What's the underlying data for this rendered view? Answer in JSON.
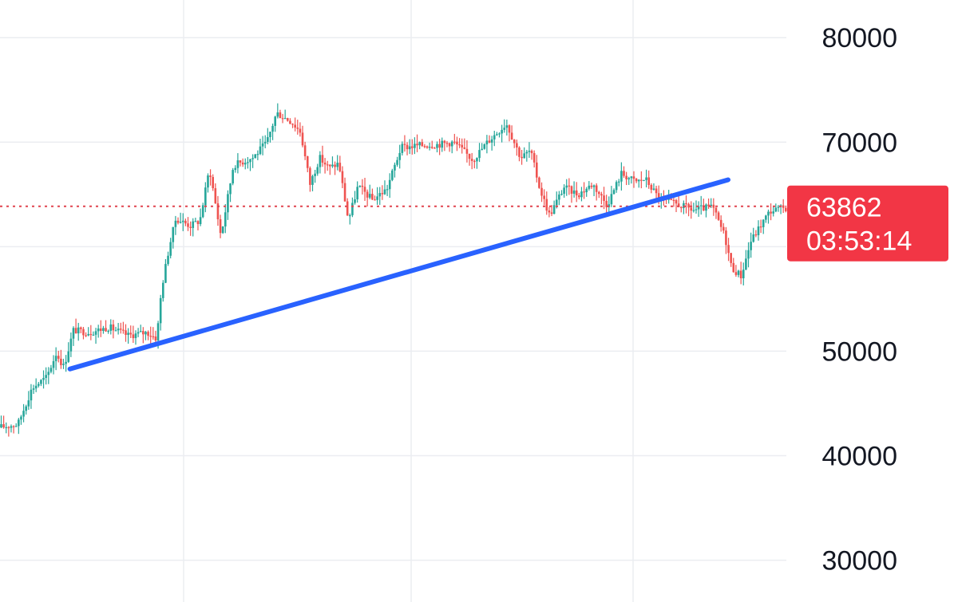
{
  "chart_data": {
    "type": "candlestick",
    "yticks": [
      80000,
      70000,
      50000,
      40000,
      30000
    ],
    "ylim": [
      26000,
      83600
    ],
    "grid": true,
    "price_label": {
      "value": 63862,
      "countdown": "03:53:14"
    },
    "trendline": {
      "start": [
        0.073,
        48300
      ],
      "end": [
        0.76,
        66400
      ]
    },
    "price_path": [
      [
        0.0,
        42700
      ],
      [
        0.02,
        43000
      ],
      [
        0.035,
        46500
      ],
      [
        0.05,
        47500
      ],
      [
        0.06,
        49800
      ],
      [
        0.068,
        48500
      ],
      [
        0.078,
        52000
      ],
      [
        0.095,
        51800
      ],
      [
        0.115,
        52300
      ],
      [
        0.135,
        51500
      ],
      [
        0.155,
        51800
      ],
      [
        0.165,
        51200
      ],
      [
        0.17,
        56000
      ],
      [
        0.178,
        60000
      ],
      [
        0.185,
        62700
      ],
      [
        0.2,
        62000
      ],
      [
        0.21,
        62500
      ],
      [
        0.22,
        67500
      ],
      [
        0.232,
        61000
      ],
      [
        0.245,
        67800
      ],
      [
        0.265,
        68500
      ],
      [
        0.28,
        70000
      ],
      [
        0.29,
        72800
      ],
      [
        0.305,
        72000
      ],
      [
        0.315,
        71000
      ],
      [
        0.325,
        66000
      ],
      [
        0.335,
        68500
      ],
      [
        0.345,
        67500
      ],
      [
        0.355,
        68000
      ],
      [
        0.365,
        62500
      ],
      [
        0.375,
        65800
      ],
      [
        0.39,
        64500
      ],
      [
        0.405,
        65500
      ],
      [
        0.42,
        69500
      ],
      [
        0.44,
        69700
      ],
      [
        0.46,
        69800
      ],
      [
        0.475,
        70000
      ],
      [
        0.495,
        68300
      ],
      [
        0.51,
        70000
      ],
      [
        0.53,
        71800
      ],
      [
        0.545,
        68500
      ],
      [
        0.555,
        69200
      ],
      [
        0.565,
        65500
      ],
      [
        0.575,
        63000
      ],
      [
        0.59,
        65700
      ],
      [
        0.605,
        65000
      ],
      [
        0.62,
        66000
      ],
      [
        0.635,
        64000
      ],
      [
        0.65,
        67000
      ],
      [
        0.665,
        66200
      ],
      [
        0.675,
        66500
      ],
      [
        0.69,
        64500
      ],
      [
        0.71,
        64000
      ],
      [
        0.725,
        63500
      ],
      [
        0.745,
        63800
      ],
      [
        0.758,
        61000
      ],
      [
        0.765,
        58000
      ],
      [
        0.775,
        57200
      ],
      [
        0.785,
        60500
      ],
      [
        0.795,
        62000
      ],
      [
        0.805,
        63400
      ],
      [
        0.815,
        63600
      ],
      [
        0.825,
        63800
      ],
      [
        0.835,
        63862
      ]
    ],
    "colors": {
      "up": "#26a69a",
      "down": "#ef5350",
      "trendline": "#2962ff",
      "price_line": "#e0434f",
      "price_tag": "#f23645",
      "grid": "#ebedf1",
      "axis_text": "#131722"
    }
  }
}
